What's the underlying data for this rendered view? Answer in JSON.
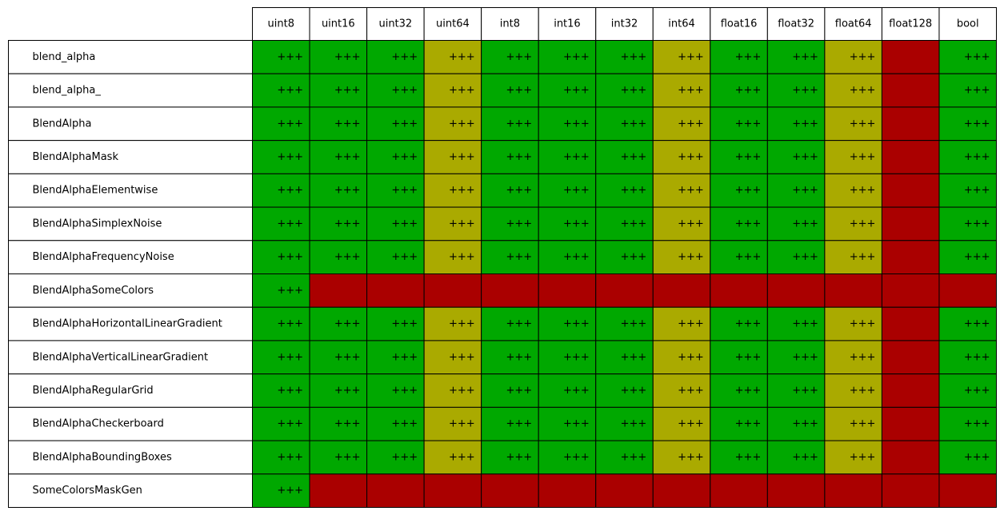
{
  "table": {
    "columns": [
      "uint8",
      "uint16",
      "uint32",
      "uint64",
      "int8",
      "int16",
      "int32",
      "int64",
      "float16",
      "float32",
      "float64",
      "float128",
      "bool"
    ],
    "rows": [
      {
        "label": "blend_alpha",
        "cells": [
          "+++",
          "+++",
          "+++",
          "+++",
          "+++",
          "+++",
          "+++",
          "+++",
          "+++",
          "+++",
          "+++",
          null,
          "+++"
        ],
        "colors": [
          "#00a800",
          "#00a800",
          "#00a800",
          "#aaaa00",
          "#00a800",
          "#00a800",
          "#00a800",
          "#aaaa00",
          "#00a800",
          "#00a800",
          "#aaaa00",
          "#aa0000",
          "#00a800"
        ]
      },
      {
        "label": "blend_alpha_",
        "cells": [
          "+++",
          "+++",
          "+++",
          "+++",
          "+++",
          "+++",
          "+++",
          "+++",
          "+++",
          "+++",
          "+++",
          null,
          "+++"
        ],
        "colors": [
          "#00a800",
          "#00a800",
          "#00a800",
          "#aaaa00",
          "#00a800",
          "#00a800",
          "#00a800",
          "#aaaa00",
          "#00a800",
          "#00a800",
          "#aaaa00",
          "#aa0000",
          "#00a800"
        ]
      },
      {
        "label": "BlendAlpha",
        "cells": [
          "+++",
          "+++",
          "+++",
          "+++",
          "+++",
          "+++",
          "+++",
          "+++",
          "+++",
          "+++",
          "+++",
          null,
          "+++"
        ],
        "colors": [
          "#00a800",
          "#00a800",
          "#00a800",
          "#aaaa00",
          "#00a800",
          "#00a800",
          "#00a800",
          "#aaaa00",
          "#00a800",
          "#00a800",
          "#aaaa00",
          "#aa0000",
          "#00a800"
        ]
      },
      {
        "label": "BlendAlphaMask",
        "cells": [
          "+++",
          "+++",
          "+++",
          "+++",
          "+++",
          "+++",
          "+++",
          "+++",
          "+++",
          "+++",
          "+++",
          null,
          "+++"
        ],
        "colors": [
          "#00a800",
          "#00a800",
          "#00a800",
          "#aaaa00",
          "#00a800",
          "#00a800",
          "#00a800",
          "#aaaa00",
          "#00a800",
          "#00a800",
          "#aaaa00",
          "#aa0000",
          "#00a800"
        ]
      },
      {
        "label": "BlendAlphaElementwise",
        "cells": [
          "+++",
          "+++",
          "+++",
          "+++",
          "+++",
          "+++",
          "+++",
          "+++",
          "+++",
          "+++",
          "+++",
          null,
          "+++"
        ],
        "colors": [
          "#00a800",
          "#00a800",
          "#00a800",
          "#aaaa00",
          "#00a800",
          "#00a800",
          "#00a800",
          "#aaaa00",
          "#00a800",
          "#00a800",
          "#aaaa00",
          "#aa0000",
          "#00a800"
        ]
      },
      {
        "label": "BlendAlphaSimplexNoise",
        "cells": [
          "+++",
          "+++",
          "+++",
          "+++",
          "+++",
          "+++",
          "+++",
          "+++",
          "+++",
          "+++",
          "+++",
          null,
          "+++"
        ],
        "colors": [
          "#00a800",
          "#00a800",
          "#00a800",
          "#aaaa00",
          "#00a800",
          "#00a800",
          "#00a800",
          "#aaaa00",
          "#00a800",
          "#00a800",
          "#aaaa00",
          "#aa0000",
          "#00a800"
        ]
      },
      {
        "label": "BlendAlphaFrequencyNoise",
        "cells": [
          "+++",
          "+++",
          "+++",
          "+++",
          "+++",
          "+++",
          "+++",
          "+++",
          "+++",
          "+++",
          "+++",
          null,
          "+++"
        ],
        "colors": [
          "#00a800",
          "#00a800",
          "#00a800",
          "#aaaa00",
          "#00a800",
          "#00a800",
          "#00a800",
          "#aaaa00",
          "#00a800",
          "#00a800",
          "#aaaa00",
          "#aa0000",
          "#00a800"
        ]
      },
      {
        "label": "BlendAlphaSomeColors",
        "cells": [
          "+++",
          null,
          null,
          null,
          null,
          null,
          null,
          null,
          null,
          null,
          null,
          null,
          null
        ],
        "colors": [
          "#00a800",
          "#aa0000",
          "#aa0000",
          "#aa0000",
          "#aa0000",
          "#aa0000",
          "#aa0000",
          "#aa0000",
          "#aa0000",
          "#aa0000",
          "#aa0000",
          "#aa0000",
          "#aa0000"
        ]
      },
      {
        "label": "BlendAlphaHorizontalLinearGradient",
        "cells": [
          "+++",
          "+++",
          "+++",
          "+++",
          "+++",
          "+++",
          "+++",
          "+++",
          "+++",
          "+++",
          "+++",
          null,
          "+++"
        ],
        "colors": [
          "#00a800",
          "#00a800",
          "#00a800",
          "#aaaa00",
          "#00a800",
          "#00a800",
          "#00a800",
          "#aaaa00",
          "#00a800",
          "#00a800",
          "#aaaa00",
          "#aa0000",
          "#00a800"
        ]
      },
      {
        "label": "BlendAlphaVerticalLinearGradient",
        "cells": [
          "+++",
          "+++",
          "+++",
          "+++",
          "+++",
          "+++",
          "+++",
          "+++",
          "+++",
          "+++",
          "+++",
          null,
          "+++"
        ],
        "colors": [
          "#00a800",
          "#00a800",
          "#00a800",
          "#aaaa00",
          "#00a800",
          "#00a800",
          "#00a800",
          "#aaaa00",
          "#00a800",
          "#00a800",
          "#aaaa00",
          "#aa0000",
          "#00a800"
        ]
      },
      {
        "label": "BlendAlphaRegularGrid",
        "cells": [
          "+++",
          "+++",
          "+++",
          "+++",
          "+++",
          "+++",
          "+++",
          "+++",
          "+++",
          "+++",
          "+++",
          null,
          "+++"
        ],
        "colors": [
          "#00a800",
          "#00a800",
          "#00a800",
          "#aaaa00",
          "#00a800",
          "#00a800",
          "#00a800",
          "#aaaa00",
          "#00a800",
          "#00a800",
          "#aaaa00",
          "#aa0000",
          "#00a800"
        ]
      },
      {
        "label": "BlendAlphaCheckerboard",
        "cells": [
          "+++",
          "+++",
          "+++",
          "+++",
          "+++",
          "+++",
          "+++",
          "+++",
          "+++",
          "+++",
          "+++",
          null,
          "+++"
        ],
        "colors": [
          "#00a800",
          "#00a800",
          "#00a800",
          "#aaaa00",
          "#00a800",
          "#00a800",
          "#00a800",
          "#aaaa00",
          "#00a800",
          "#00a800",
          "#aaaa00",
          "#aa0000",
          "#00a800"
        ]
      },
      {
        "label": "BlendAlphaBoundingBoxes",
        "cells": [
          "+++",
          "+++",
          "+++",
          "+++",
          "+++",
          "+++",
          "+++",
          "+++",
          "+++",
          "+++",
          "+++",
          null,
          "+++"
        ],
        "colors": [
          "#00a800",
          "#00a800",
          "#00a800",
          "#aaaa00",
          "#00a800",
          "#00a800",
          "#00a800",
          "#aaaa00",
          "#00a800",
          "#00a800",
          "#aaaa00",
          "#aa0000",
          "#00a800"
        ]
      },
      {
        "label": "SomeColorsMaskGen",
        "cells": [
          "+++",
          null,
          null,
          null,
          null,
          null,
          null,
          null,
          null,
          null,
          null,
          null,
          null
        ],
        "colors": [
          "#00a800",
          "#aa0000",
          "#aa0000",
          "#aa0000",
          "#aa0000",
          "#aa0000",
          "#aa0000",
          "#aa0000",
          "#aa0000",
          "#aa0000",
          "#aa0000",
          "#aa0000",
          "#aa0000"
        ]
      }
    ]
  }
}
